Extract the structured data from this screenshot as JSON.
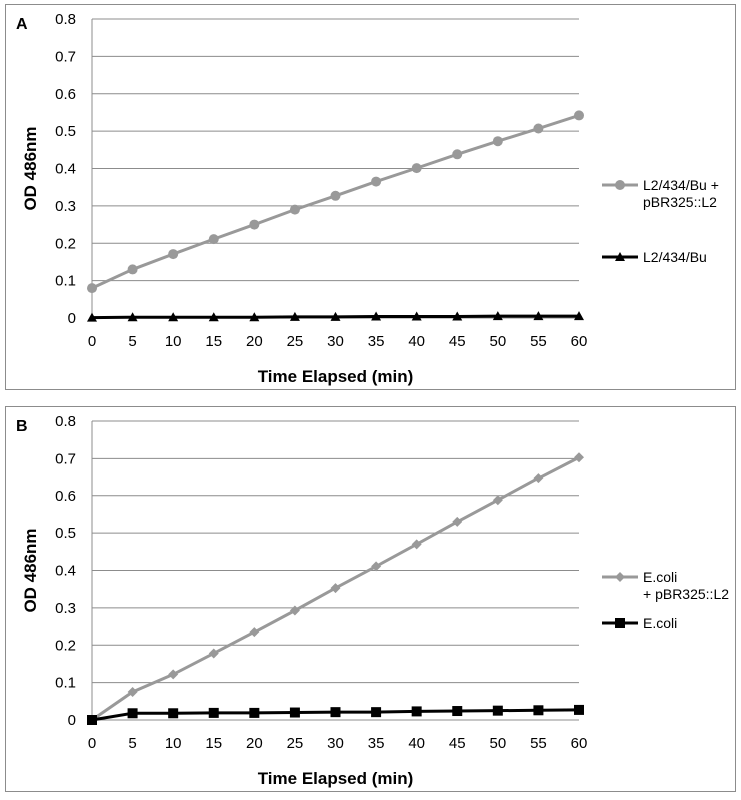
{
  "chart_data": [
    {
      "panel_label": "A",
      "type": "line",
      "xlabel": "Time Elapsed (min)",
      "ylabel": "OD 486nm",
      "x": [
        0,
        5,
        10,
        15,
        20,
        25,
        30,
        35,
        40,
        45,
        50,
        55,
        60
      ],
      "xticks": [
        "0",
        "5",
        "10",
        "15",
        "20",
        "25",
        "30",
        "35",
        "40",
        "45",
        "50",
        "55",
        "60"
      ],
      "yticks": [
        "0",
        "0.1",
        "0.2",
        "0.3",
        "0.4",
        "0.5",
        "0.6",
        "0.7",
        "0.8"
      ],
      "ylim": [
        0,
        0.8
      ],
      "grid": "horizontal",
      "legend_position": "right",
      "series": [
        {
          "name": [
            "L2/434/Bu +",
            "pBR325::L2"
          ],
          "color": "#999999",
          "marker": "circle",
          "values": [
            0.08,
            0.13,
            0.171,
            0.211,
            0.25,
            0.29,
            0.327,
            0.365,
            0.401,
            0.438,
            0.473,
            0.507,
            0.542
          ]
        },
        {
          "name": [
            "L2/434/Bu"
          ],
          "color": "#000000",
          "marker": "triangle",
          "values": [
            0.001,
            0.002,
            0.002,
            0.002,
            0.002,
            0.003,
            0.003,
            0.004,
            0.004,
            0.004,
            0.005,
            0.005,
            0.005
          ]
        }
      ]
    },
    {
      "panel_label": "B",
      "type": "line",
      "xlabel": "Time Elapsed (min)",
      "ylabel": "OD 486nm",
      "x": [
        0,
        5,
        10,
        15,
        20,
        25,
        30,
        35,
        40,
        45,
        50,
        55,
        60
      ],
      "xticks": [
        "0",
        "5",
        "10",
        "15",
        "20",
        "25",
        "30",
        "35",
        "40",
        "45",
        "50",
        "55",
        "60"
      ],
      "yticks": [
        "0",
        "0.1",
        "0.2",
        "0.3",
        "0.4",
        "0.5",
        "0.6",
        "0.7",
        "0.8"
      ],
      "ylim": [
        0,
        0.8
      ],
      "grid": "horizontal",
      "legend_position": "right",
      "series": [
        {
          "name": [
            "E.coli",
            "+ pBR325::L2"
          ],
          "color": "#999999",
          "marker": "diamond",
          "values": [
            0.0,
            0.075,
            0.122,
            0.178,
            0.235,
            0.293,
            0.353,
            0.411,
            0.47,
            0.53,
            0.588,
            0.647,
            0.703
          ]
        },
        {
          "name": [
            "E.coli"
          ],
          "color": "#000000",
          "marker": "square",
          "values": [
            0.0,
            0.018,
            0.018,
            0.019,
            0.019,
            0.02,
            0.021,
            0.021,
            0.023,
            0.024,
            0.025,
            0.026,
            0.027
          ]
        }
      ]
    }
  ]
}
